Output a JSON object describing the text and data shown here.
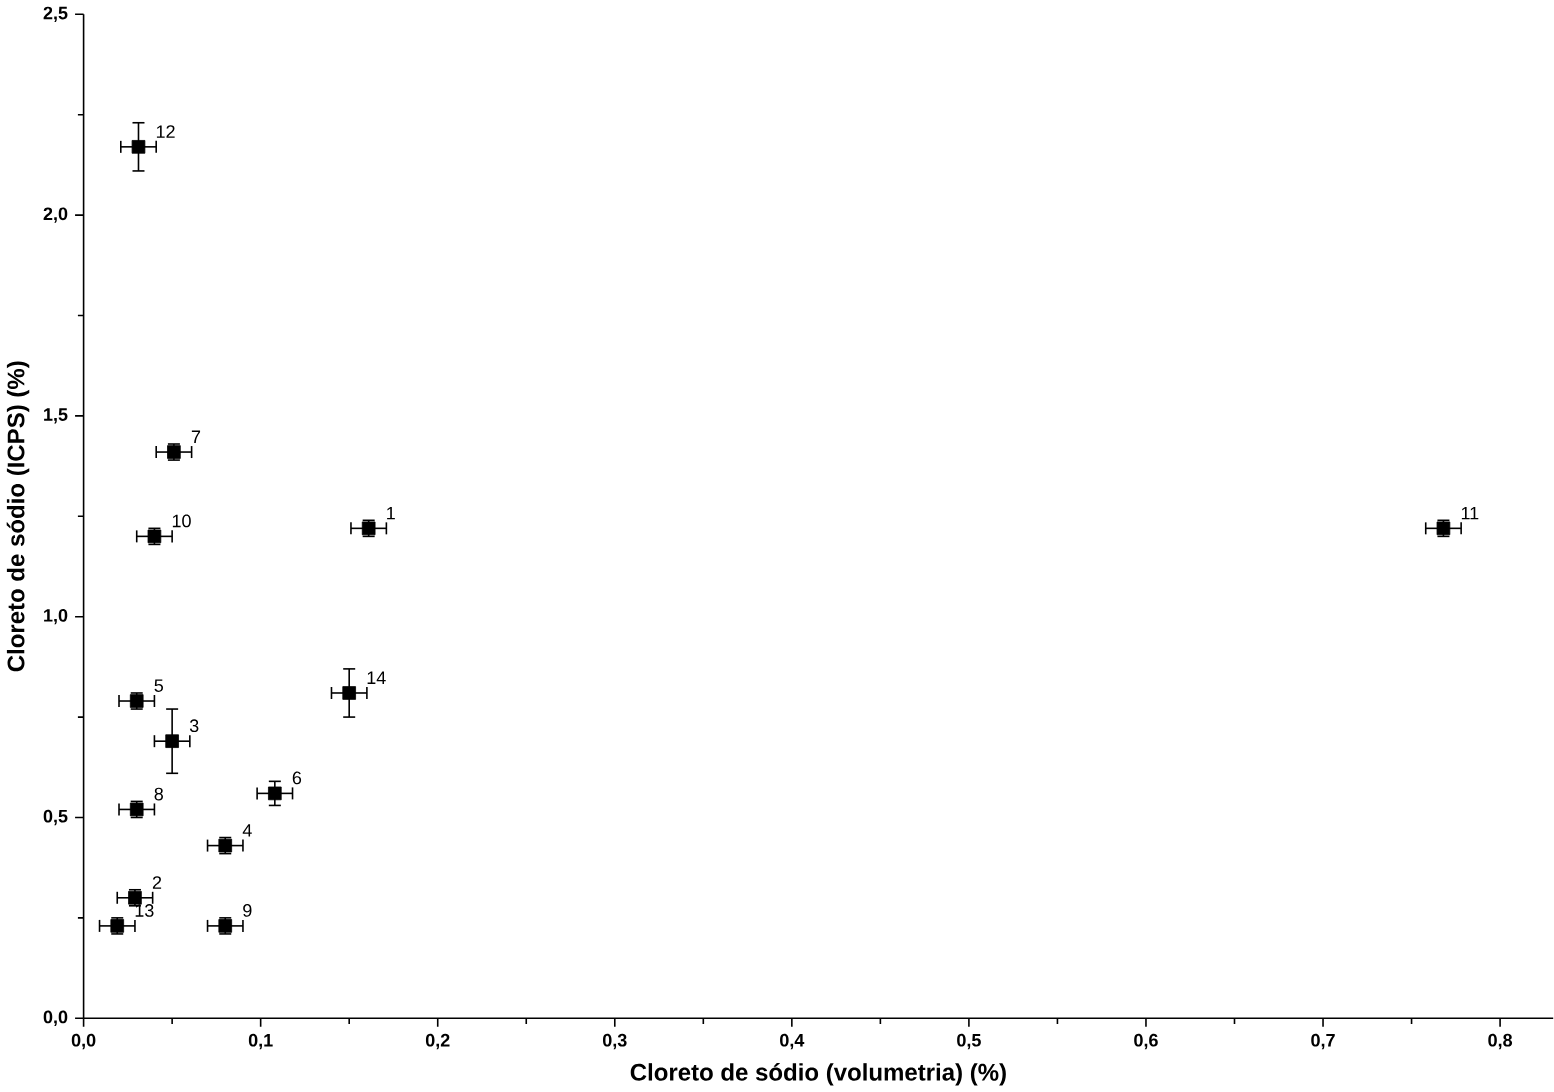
{
  "chart_data": {
    "type": "scatter",
    "xlabel": "Cloreto de sódio (volumetria) (%)",
    "ylabel": "Cloreto de sódio (ICPS) (%)",
    "x": [
      0.161,
      0.029,
      0.05,
      0.08,
      0.03,
      0.108,
      0.051,
      0.03,
      0.08,
      0.04,
      0.768,
      0.031,
      0.019,
      0.15
    ],
    "values": [
      1.22,
      0.3,
      0.69,
      0.43,
      0.79,
      0.56,
      1.41,
      0.52,
      0.23,
      1.2,
      1.22,
      2.17,
      0.23,
      0.81
    ],
    "errors": [
      0.02,
      0.02,
      0.08,
      0.02,
      0.02,
      0.03,
      0.02,
      0.02,
      0.02,
      0.02,
      0.02,
      0.06,
      0.02,
      0.06
    ],
    "xerrors": [
      0.01,
      0.01,
      0.01,
      0.01,
      0.01,
      0.01,
      0.01,
      0.01,
      0.01,
      0.01,
      0.01,
      0.01,
      0.01,
      0.01
    ],
    "color": "#000000",
    "marker": "square",
    "grid": false,
    "xlim": [
      0,
      0.83
    ],
    "ylim": [
      0,
      2.5
    ],
    "xticks": [
      {
        "value": 0,
        "label": "0,0"
      },
      {
        "value": 0.1,
        "label": "0,1"
      },
      {
        "value": 0.2,
        "label": "0,2"
      },
      {
        "value": 0.3,
        "label": "0,3"
      },
      {
        "value": 0.4,
        "label": "0,4"
      },
      {
        "value": 0.5,
        "label": "0,5"
      },
      {
        "value": 0.6,
        "label": "0,6"
      },
      {
        "value": 0.7,
        "label": "0,7"
      },
      {
        "value": 0.8,
        "label": "0,8"
      }
    ],
    "yticks": [
      {
        "value": 0,
        "label": "0,0"
      },
      {
        "value": 0.5,
        "label": "0,5"
      },
      {
        "value": 1.0,
        "label": "1,0"
      },
      {
        "value": 1.5,
        "label": "1,5"
      },
      {
        "value": 2.0,
        "label": "2,0"
      },
      {
        "value": 2.5,
        "label": "2,5"
      }
    ],
    "annotations": [
      {
        "text": "1",
        "x": 0.161,
        "y": 1.22
      },
      {
        "text": "2",
        "x": 0.029,
        "y": 0.3
      },
      {
        "text": "3",
        "x": 0.05,
        "y": 0.69
      },
      {
        "text": "4",
        "x": 0.08,
        "y": 0.43
      },
      {
        "text": "5",
        "x": 0.03,
        "y": 0.79
      },
      {
        "text": "6",
        "x": 0.108,
        "y": 0.56
      },
      {
        "text": "7",
        "x": 0.051,
        "y": 1.41
      },
      {
        "text": "8",
        "x": 0.03,
        "y": 0.52
      },
      {
        "text": "9",
        "x": 0.08,
        "y": 0.23
      },
      {
        "text": "10",
        "x": 0.04,
        "y": 1.2
      },
      {
        "text": "11",
        "x": 0.768,
        "y": 1.22
      },
      {
        "text": "12",
        "x": 0.031,
        "y": 2.17
      },
      {
        "text": "13",
        "x": 0.019,
        "y": 0.23
      },
      {
        "text": "14",
        "x": 0.15,
        "y": 0.81
      }
    ]
  }
}
